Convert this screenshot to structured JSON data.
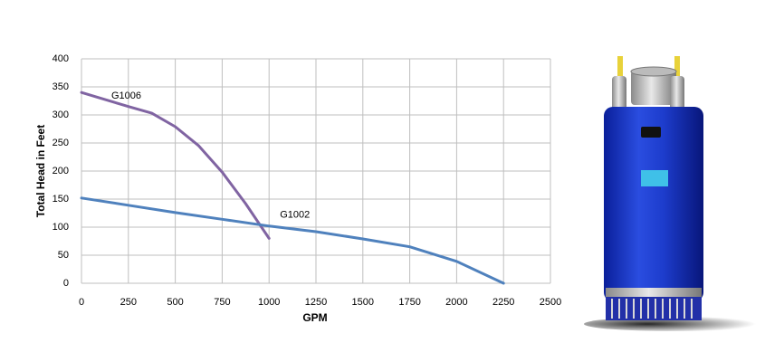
{
  "chart_data": {
    "type": "line",
    "xlabel": "GPM",
    "ylabel": "Total Head in Feet",
    "xlim": [
      0,
      2500
    ],
    "xticks": [
      0,
      250,
      500,
      750,
      1000,
      1250,
      1500,
      1750,
      2000,
      2250,
      2500
    ],
    "ylim": [
      0,
      400
    ],
    "yticks": [
      0,
      50,
      100,
      150,
      200,
      250,
      300,
      350,
      400
    ],
    "grid": true,
    "series": [
      {
        "name": "G1006",
        "color": "#8064a2",
        "x": [
          0,
          250,
          375,
          500,
          625,
          750,
          875,
          1000
        ],
        "values": [
          340,
          315,
          303,
          279,
          245,
          198,
          142,
          80
        ]
      },
      {
        "name": "G1002",
        "color": "#4f81bd",
        "x": [
          0,
          250,
          500,
          750,
          1000,
          1250,
          1500,
          1750,
          2000,
          2250
        ],
        "values": [
          152,
          139,
          126,
          114,
          102,
          92,
          79,
          65,
          39,
          0
        ]
      }
    ]
  }
}
